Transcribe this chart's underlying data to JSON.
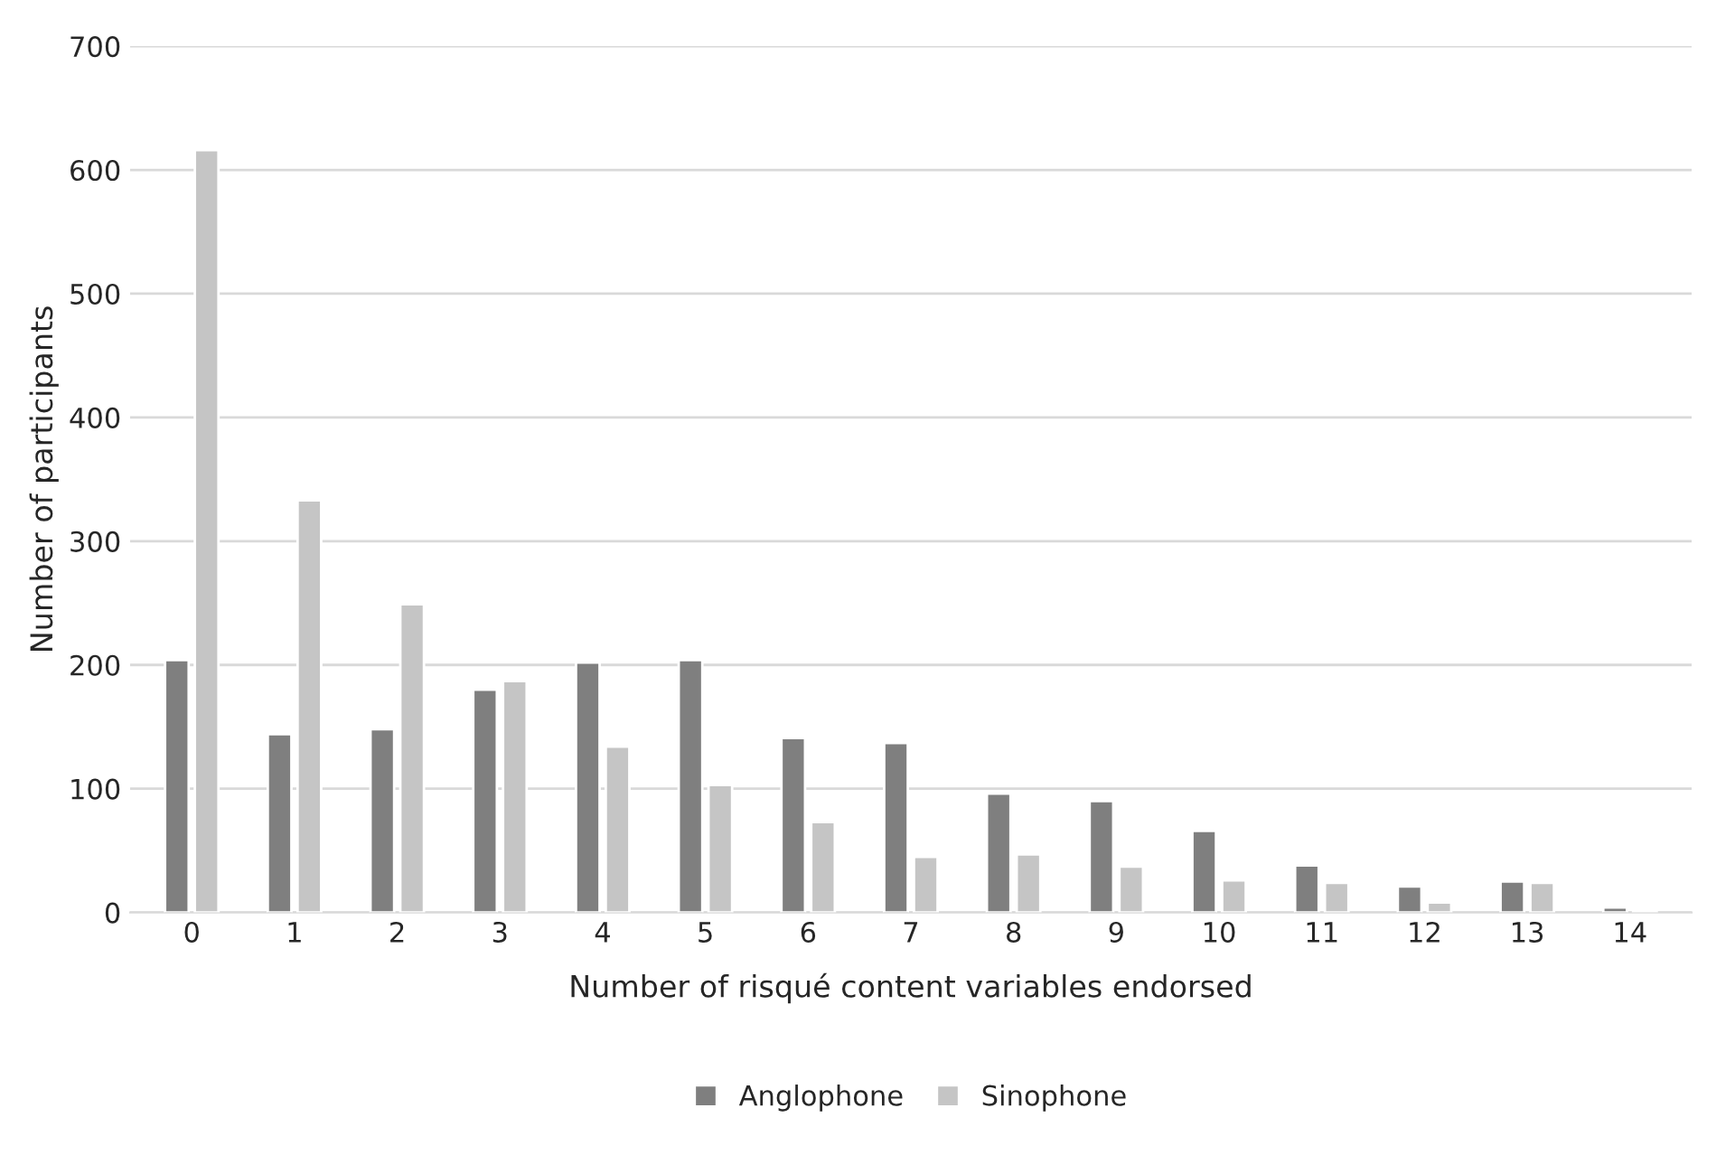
{
  "chart_data": {
    "type": "bar",
    "xlabel": "Number of risqué content variables endorsed",
    "ylabel": "Number of participants",
    "categories": [
      "0",
      "1",
      "2",
      "3",
      "4",
      "5",
      "6",
      "7",
      "8",
      "9",
      "10",
      "11",
      "12",
      "13",
      "14"
    ],
    "series": [
      {
        "name": "Anglophone",
        "color": "#7f7f7f",
        "values": [
          204,
          144,
          148,
          180,
          202,
          204,
          141,
          137,
          96,
          90,
          66,
          38,
          21,
          25,
          4
        ]
      },
      {
        "name": "Sinophone",
        "color": "#c5c5c5",
        "values": [
          616,
          333,
          249,
          187,
          134,
          103,
          73,
          45,
          47,
          37,
          26,
          24,
          8,
          24,
          2
        ]
      }
    ],
    "ylim": [
      0,
      700
    ],
    "yticks": [
      0,
      100,
      200,
      300,
      400,
      500,
      600,
      700
    ],
    "grid": "y",
    "legend": "bottom"
  }
}
